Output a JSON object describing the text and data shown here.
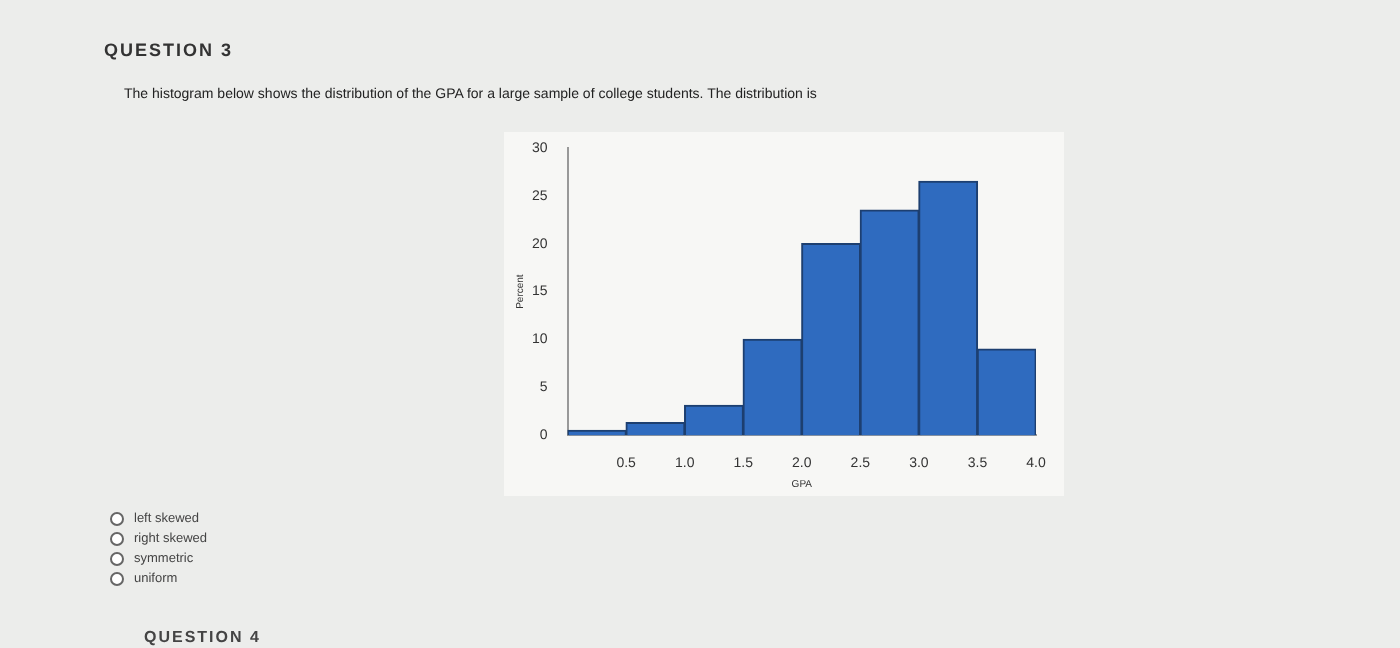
{
  "chart_data": {
    "type": "histogram",
    "title": "QUESTION 3",
    "subtitle": "The histogram below shows the distribution of the GPA for a large sample of college students. The distribution is",
    "xlabel": "GPA",
    "ylabel": "Percent",
    "bins": [
      0,
      0.5,
      1,
      1.5,
      2,
      2.5,
      3,
      3.5,
      4
    ],
    "values": [
      0.5,
      1.3,
      3.1,
      10,
      20,
      23.5,
      26.5,
      9
    ],
    "color": "#2f6bbf",
    "xlim": [
      0,
      4
    ],
    "xticks": [
      {
        "value": 0.5,
        "label": "0.5"
      },
      {
        "value": 1,
        "label": "1.0"
      },
      {
        "value": 1.5,
        "label": "1.5"
      },
      {
        "value": 2,
        "label": "2.0"
      },
      {
        "value": 2.5,
        "label": "2.5"
      },
      {
        "value": 3,
        "label": "3.0"
      },
      {
        "value": 3.5,
        "label": "3.5"
      },
      {
        "value": 4,
        "label": "4.0"
      }
    ],
    "ylim": [
      0,
      30
    ],
    "yticks": [
      0,
      5,
      10,
      15,
      20,
      25,
      30
    ],
    "grid": false,
    "legend": false,
    "annotations": [
      "left skewed",
      "right skewed",
      "symmetric",
      "uniform",
      "QUESTION 4"
    ]
  }
}
